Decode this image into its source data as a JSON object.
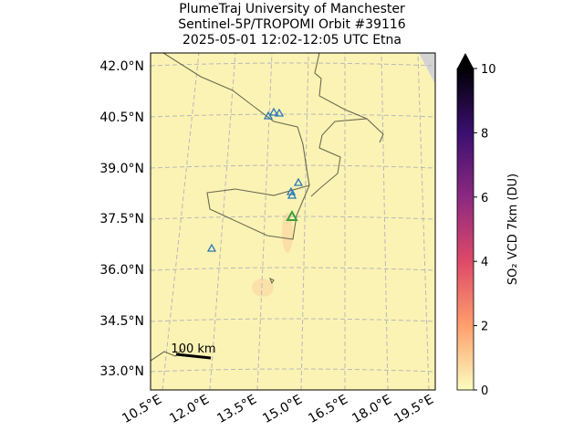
{
  "title": [
    "PlumeTraj    University of Manchester",
    "Sentinel-5P/TROPOMI Orbit #39116",
    "2025-05-01   12:02-12:05 UTC   Etna"
  ],
  "map": {
    "lat_labels": [
      "42.0°N",
      "40.5°N",
      "39.0°N",
      "37.5°N",
      "36.0°N",
      "34.5°N",
      "33.0°N"
    ],
    "lon_labels": [
      "10.5°E",
      "12.0°E",
      "13.5°E",
      "15.0°E",
      "16.5°E",
      "18.0°E",
      "19.5°E"
    ],
    "scale_label": "100 km"
  },
  "colorbar": {
    "label": "SO₂ VCD 7km (DU)",
    "lim": [
      0,
      10
    ],
    "ticks": [
      0,
      2,
      4,
      6,
      8,
      10
    ],
    "colors": [
      "#fcfdbf",
      "#fe9f6d",
      "#de4968",
      "#8c2981",
      "#3b0f70",
      "#000004"
    ]
  }
}
